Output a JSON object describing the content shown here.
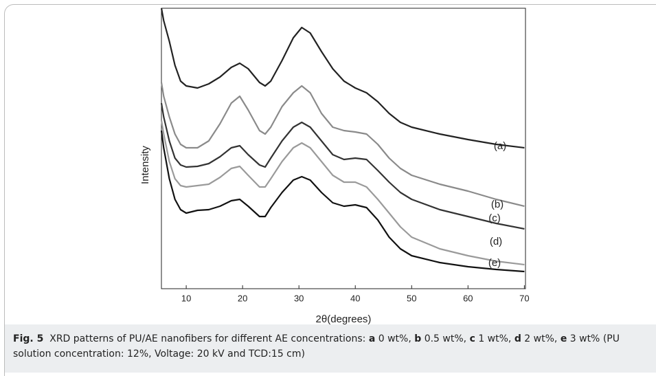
{
  "chart_data": {
    "type": "line",
    "xlabel": "2θ(degrees)",
    "ylabel": "Intensity",
    "xlim": [
      5.6,
      70.2
    ],
    "xticks": [
      10,
      20,
      30,
      40,
      50,
      60,
      70
    ],
    "ylim": [
      0,
      408
    ],
    "x": [
      5.6,
      6,
      7,
      8,
      9,
      10,
      12,
      14,
      16,
      18,
      19.5,
      21,
      23,
      24,
      25,
      27,
      29,
      30.5,
      32,
      34,
      36,
      38,
      40,
      42,
      44,
      46,
      48,
      50,
      55,
      60,
      65,
      70
    ],
    "series": [
      {
        "name": "(a)",
        "color": "#222222",
        "values": [
          408,
          390,
          360,
          325,
          302,
          295,
          292,
          298,
          308,
          322,
          328,
          320,
          300,
          295,
          302,
          332,
          365,
          380,
          372,
          345,
          320,
          302,
          292,
          285,
          272,
          255,
          242,
          235,
          225,
          217,
          210,
          205
        ]
      },
      {
        "name": "(b)",
        "color": "#8a8a8a",
        "values": [
          300,
          280,
          250,
          225,
          210,
          205,
          205,
          215,
          240,
          270,
          280,
          260,
          230,
          225,
          235,
          265,
          285,
          295,
          285,
          255,
          235,
          230,
          228,
          225,
          210,
          190,
          175,
          165,
          152,
          142,
          130,
          120
        ]
      },
      {
        "name": "(c)",
        "color": "#333333",
        "values": [
          270,
          250,
          215,
          190,
          180,
          177,
          178,
          182,
          192,
          205,
          208,
          195,
          180,
          177,
          190,
          215,
          235,
          242,
          235,
          215,
          195,
          188,
          190,
          188,
          172,
          155,
          140,
          130,
          115,
          105,
          95,
          87
        ]
      },
      {
        "name": "(d)",
        "color": "#9a9a9a",
        "values": [
          245,
          225,
          185,
          160,
          150,
          148,
          150,
          152,
          162,
          175,
          178,
          165,
          148,
          148,
          160,
          185,
          205,
          212,
          205,
          185,
          165,
          155,
          155,
          148,
          130,
          110,
          90,
          75,
          58,
          48,
          40,
          35
        ]
      },
      {
        "name": "(e)",
        "color": "#111111",
        "values": [
          230,
          205,
          160,
          130,
          115,
          110,
          114,
          115,
          120,
          128,
          130,
          120,
          105,
          105,
          118,
          140,
          158,
          163,
          158,
          140,
          125,
          120,
          122,
          118,
          100,
          75,
          58,
          48,
          38,
          32,
          28,
          25
        ]
      }
    ]
  },
  "caption": {
    "label": "Fig. 5",
    "parts": [
      "XRD patterns of PU/AE nanofibers for different AE concentrations: ",
      "a",
      " 0 wt%, ",
      "b",
      " 0.5 wt%, ",
      "c",
      " 1 wt%, ",
      "d",
      " 2 wt%, ",
      "e",
      " 3 wt% (PU solution concentration: 12%, Voltage: 20 kV and TCD:15 cm)"
    ]
  }
}
